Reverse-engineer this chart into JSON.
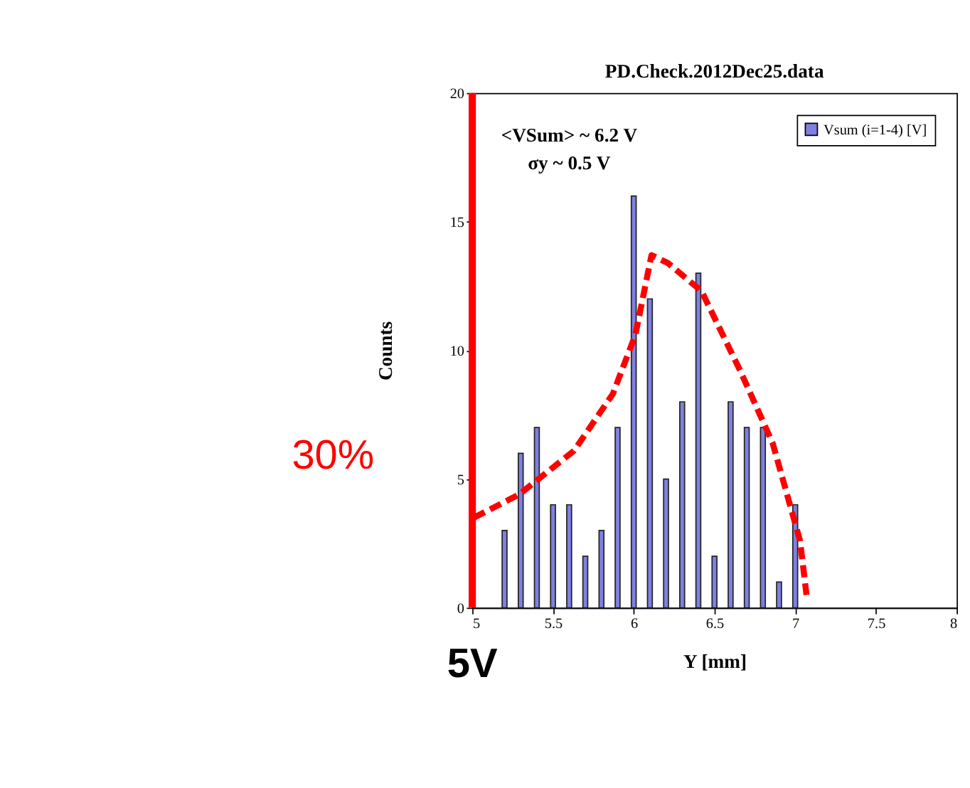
{
  "chart_data": {
    "type": "bar",
    "title": "PD.Check.2012Dec25.data",
    "xlabel": "Y [mm]",
    "ylabel": "Counts",
    "x": [
      5.2,
      5.3,
      5.4,
      5.5,
      5.6,
      5.7,
      5.8,
      5.9,
      6.0,
      6.1,
      6.2,
      6.3,
      6.4,
      6.5,
      6.6,
      6.7,
      6.8,
      6.9,
      7.0
    ],
    "series": [
      {
        "name": "Vsum (i=1-4) [V]",
        "color": "#8080e0",
        "values": [
          3,
          6,
          7,
          4,
          4,
          2,
          3,
          7,
          16,
          12,
          5,
          8,
          13,
          2,
          8,
          7,
          7,
          1,
          4
        ]
      },
      {
        "type": "line",
        "color": "#ff0000",
        "line_style": "dashed",
        "x": [
          5.01,
          5.29,
          5.63,
          5.87,
          6.01,
          6.11,
          6.21,
          6.42,
          6.66,
          6.86,
          7.03,
          7.07
        ],
        "values": [
          3.5,
          4.4,
          6.1,
          8.3,
          10.6,
          13.7,
          13.4,
          12.3,
          9.2,
          6.4,
          2.6,
          0.5
        ]
      }
    ],
    "xlim": [
      5,
      8
    ],
    "xticks": [
      5,
      5.5,
      6,
      6.5,
      7,
      7.5,
      8
    ],
    "ylim": [
      0,
      20
    ],
    "yticks": [
      0,
      5,
      10,
      15,
      20
    ],
    "ref_lines": [
      {
        "axis": "x",
        "value": 5,
        "label": "5V",
        "color": "#ff0000"
      }
    ],
    "annotations": [
      "<VSum> ~ 6.2 V",
      "σy ~ 0.5 V",
      "30%"
    ],
    "grid": false,
    "legend": "top right"
  }
}
